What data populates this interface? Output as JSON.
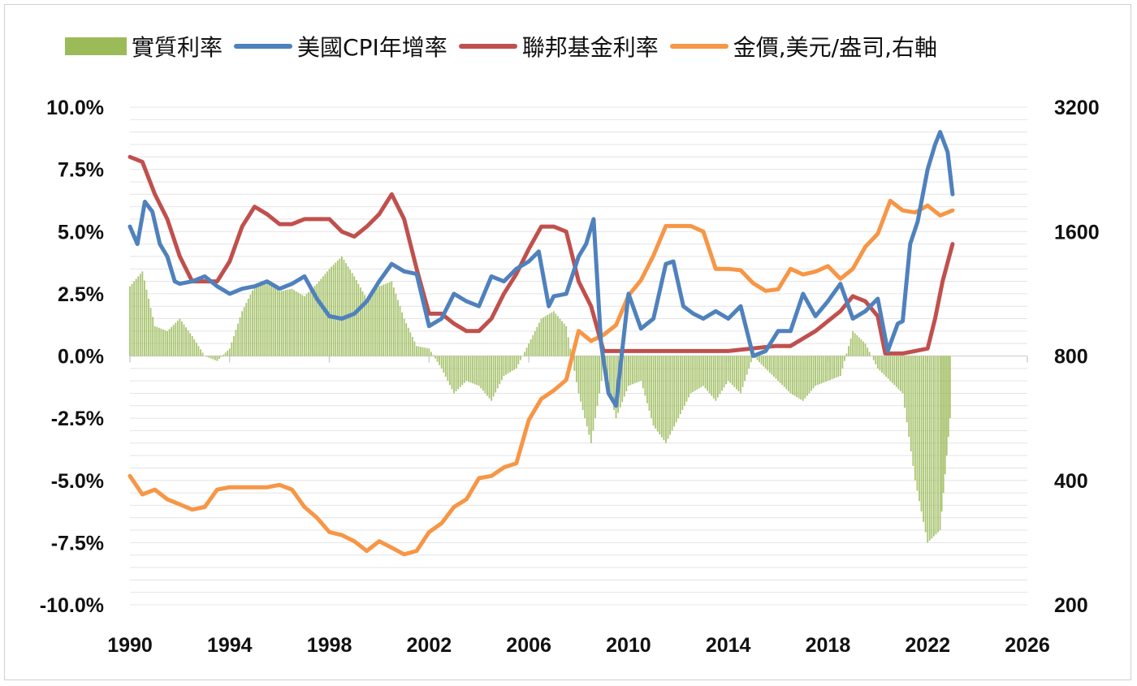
{
  "chart_data": {
    "type": "bar+line",
    "title": "",
    "legend_position": "top",
    "grid": true,
    "x_axis": {
      "range": [
        1990,
        2026
      ],
      "ticks": [
        "1990",
        "1994",
        "1998",
        "2002",
        "2006",
        "2010",
        "2014",
        "2018",
        "2022",
        "2026"
      ]
    },
    "y_left": {
      "range": [
        -10.0,
        10.0
      ],
      "unit": "%",
      "ticks": [
        "10.0%",
        "7.5%",
        "5.0%",
        "2.5%",
        "0.0%",
        "-2.5%",
        "-5.0%",
        "-7.5%",
        "-10.0%"
      ]
    },
    "y_right": {
      "range": [
        200,
        3200
      ],
      "ticks": [
        "3200",
        "1600",
        "800",
        "400",
        "200"
      ],
      "scale": "log2"
    },
    "series": [
      {
        "name": "實質利率",
        "type": "bar",
        "axis": "left",
        "color": "#9bbb59",
        "x": [
          1990.0,
          1990.5,
          1991.0,
          1991.5,
          1992.0,
          1992.5,
          1993.0,
          1993.5,
          1994.0,
          1994.5,
          1995.0,
          1995.5,
          1996.0,
          1996.5,
          1997.0,
          1997.5,
          1998.0,
          1998.5,
          1999.0,
          1999.5,
          2000.0,
          2000.5,
          2001.0,
          2001.5,
          2002.0,
          2002.5,
          2003.0,
          2003.5,
          2004.0,
          2004.5,
          2005.0,
          2005.5,
          2006.0,
          2006.5,
          2007.0,
          2007.5,
          2008.0,
          2008.5,
          2009.0,
          2009.5,
          2010.0,
          2010.5,
          2011.0,
          2011.5,
          2012.0,
          2012.5,
          2013.0,
          2013.5,
          2014.0,
          2014.5,
          2015.0,
          2015.5,
          2016.0,
          2016.5,
          2017.0,
          2017.5,
          2018.0,
          2018.5,
          2019.0,
          2019.5,
          2020.0,
          2020.5,
          2021.0,
          2021.5,
          2022.0,
          2022.5,
          2022.9
        ],
        "values": [
          2.8,
          3.4,
          1.2,
          1.0,
          1.5,
          0.8,
          0.0,
          -0.2,
          0.3,
          1.8,
          2.8,
          3.0,
          2.6,
          2.7,
          2.4,
          2.9,
          3.5,
          4.0,
          3.2,
          2.3,
          2.8,
          3.0,
          1.5,
          0.4,
          0.3,
          -0.5,
          -1.5,
          -1.0,
          -1.2,
          -1.8,
          -0.8,
          -0.5,
          0.5,
          1.5,
          1.8,
          1.2,
          -1.5,
          -3.5,
          -0.5,
          -2.5,
          -1.2,
          -1.0,
          -2.8,
          -3.5,
          -2.5,
          -1.5,
          -1.2,
          -1.8,
          -1.0,
          -1.5,
          0.0,
          -0.5,
          -1.0,
          -1.5,
          -1.8,
          -1.2,
          -1.0,
          -0.8,
          1.0,
          0.5,
          -0.5,
          -1.0,
          -1.5,
          -5.0,
          -7.5,
          -7.0,
          -2.5
        ]
      },
      {
        "name": "美國CPI年增率",
        "type": "line",
        "axis": "left",
        "color": "#4f81bd",
        "x": [
          1990.0,
          1990.3,
          1990.6,
          1990.9,
          1991.2,
          1991.5,
          1991.8,
          1992.0,
          1992.5,
          1993.0,
          1993.5,
          1994.0,
          1994.5,
          1995.0,
          1995.5,
          1996.0,
          1996.5,
          1997.0,
          1997.5,
          1998.0,
          1998.5,
          1999.0,
          1999.5,
          2000.0,
          2000.5,
          2001.0,
          2001.5,
          2002.0,
          2002.5,
          2003.0,
          2003.5,
          2004.0,
          2004.5,
          2005.0,
          2005.5,
          2006.0,
          2006.4,
          2006.8,
          2007.0,
          2007.5,
          2008.0,
          2008.3,
          2008.6,
          2008.9,
          2009.2,
          2009.5,
          2010.0,
          2010.5,
          2011.0,
          2011.5,
          2011.8,
          2012.2,
          2012.6,
          2013.0,
          2013.5,
          2014.0,
          2014.5,
          2015.0,
          2015.5,
          2016.0,
          2016.5,
          2017.0,
          2017.5,
          2018.0,
          2018.5,
          2019.0,
          2019.5,
          2020.0,
          2020.4,
          2020.8,
          2021.0,
          2021.3,
          2021.6,
          2022.0,
          2022.3,
          2022.5,
          2022.8,
          2023.0
        ],
        "values": [
          5.2,
          4.5,
          6.2,
          5.8,
          4.5,
          4.0,
          3.0,
          2.9,
          3.0,
          3.2,
          2.8,
          2.5,
          2.7,
          2.8,
          3.0,
          2.7,
          2.9,
          3.2,
          2.3,
          1.6,
          1.5,
          1.7,
          2.2,
          3.0,
          3.7,
          3.4,
          3.3,
          1.2,
          1.5,
          2.5,
          2.2,
          2.0,
          3.2,
          3.0,
          3.5,
          3.8,
          4.2,
          2.0,
          2.4,
          2.5,
          4.0,
          4.5,
          5.5,
          0.5,
          -1.5,
          -2.0,
          2.5,
          1.1,
          1.5,
          3.7,
          3.8,
          2.0,
          1.7,
          1.5,
          1.8,
          1.5,
          2.0,
          0.0,
          0.2,
          1.0,
          1.0,
          2.5,
          1.6,
          2.2,
          2.9,
          1.5,
          1.8,
          2.3,
          0.2,
          1.3,
          1.4,
          4.5,
          5.4,
          7.5,
          8.5,
          9.0,
          8.2,
          6.5
        ]
      },
      {
        "name": "聯邦基金利率",
        "type": "line",
        "axis": "left",
        "color": "#c0504d",
        "x": [
          1990.0,
          1990.5,
          1991.0,
          1991.5,
          1992.0,
          1992.5,
          1993.0,
          1993.5,
          1994.0,
          1994.5,
          1995.0,
          1995.5,
          1996.0,
          1996.5,
          1997.0,
          1997.5,
          1998.0,
          1998.5,
          1999.0,
          1999.5,
          2000.0,
          2000.5,
          2001.0,
          2001.5,
          2002.0,
          2002.5,
          2003.0,
          2003.5,
          2004.0,
          2004.5,
          2005.0,
          2005.5,
          2006.0,
          2006.5,
          2007.0,
          2007.5,
          2008.0,
          2008.5,
          2009.0,
          2009.5,
          2010.0,
          2012.0,
          2014.0,
          2015.9,
          2016.5,
          2017.0,
          2017.5,
          2018.0,
          2018.5,
          2019.0,
          2019.5,
          2020.0,
          2020.3,
          2021.0,
          2022.0,
          2022.3,
          2022.6,
          2023.0
        ],
        "values": [
          8.0,
          7.8,
          6.5,
          5.5,
          4.0,
          3.0,
          3.0,
          3.0,
          3.8,
          5.2,
          6.0,
          5.7,
          5.3,
          5.3,
          5.5,
          5.5,
          5.5,
          5.0,
          4.8,
          5.2,
          5.7,
          6.5,
          5.5,
          3.5,
          1.7,
          1.7,
          1.3,
          1.0,
          1.0,
          1.5,
          2.5,
          3.3,
          4.3,
          5.2,
          5.2,
          5.0,
          3.0,
          2.0,
          0.2,
          0.2,
          0.2,
          0.2,
          0.2,
          0.4,
          0.4,
          0.7,
          1.0,
          1.4,
          1.8,
          2.4,
          2.2,
          1.6,
          0.1,
          0.1,
          0.3,
          1.5,
          3.0,
          4.5
        ]
      },
      {
        "name": "金價,美元/盎司,右軸",
        "type": "line",
        "axis": "right",
        "color": "#f79646",
        "x": [
          1990.0,
          1990.5,
          1991.0,
          1991.5,
          1992.0,
          1992.5,
          1993.0,
          1993.5,
          1994.0,
          1994.5,
          1995.0,
          1995.5,
          1996.0,
          1996.5,
          1997.0,
          1997.5,
          1998.0,
          1998.5,
          1999.0,
          1999.5,
          2000.0,
          2000.5,
          2001.0,
          2001.5,
          2002.0,
          2002.5,
          2003.0,
          2003.5,
          2004.0,
          2004.5,
          2005.0,
          2005.5,
          2006.0,
          2006.5,
          2007.0,
          2007.5,
          2008.0,
          2008.5,
          2009.0,
          2009.5,
          2010.0,
          2010.5,
          2011.0,
          2011.5,
          2012.0,
          2012.5,
          2013.0,
          2013.5,
          2014.0,
          2014.5,
          2015.0,
          2015.5,
          2016.0,
          2016.5,
          2017.0,
          2017.5,
          2018.0,
          2018.5,
          2019.0,
          2019.5,
          2020.0,
          2020.5,
          2021.0,
          2021.5,
          2022.0,
          2022.5,
          2023.0
        ],
        "values": [
          410,
          370,
          380,
          360,
          350,
          340,
          345,
          380,
          385,
          385,
          385,
          385,
          390,
          380,
          345,
          325,
          300,
          295,
          285,
          270,
          285,
          275,
          265,
          270,
          300,
          315,
          345,
          360,
          405,
          410,
          430,
          440,
          560,
          630,
          660,
          700,
          920,
          870,
          900,
          950,
          1120,
          1220,
          1400,
          1650,
          1650,
          1650,
          1600,
          1300,
          1300,
          1290,
          1200,
          1150,
          1160,
          1300,
          1260,
          1280,
          1320,
          1230,
          1300,
          1470,
          1580,
          1900,
          1800,
          1780,
          1850,
          1750,
          1800
        ]
      }
    ]
  }
}
